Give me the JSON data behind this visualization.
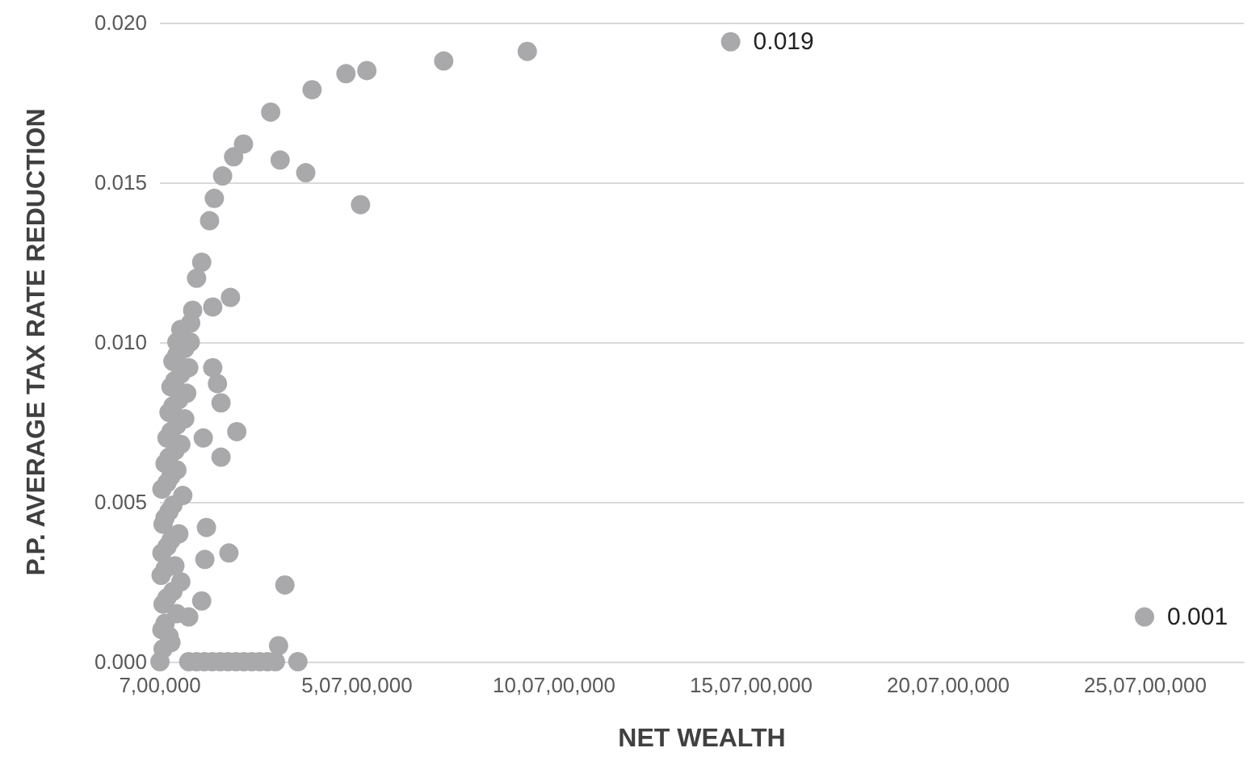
{
  "chart_data": {
    "type": "scatter",
    "xlabel": "NET WEALTH",
    "ylabel": "P.P. AVERAGE TAX RATE REDUCTION",
    "xlim": [
      700000,
      275700000
    ],
    "xticks": [
      {
        "value": 700000,
        "label": "7,00,000"
      },
      {
        "value": 50700000,
        "label": "5,07,00,000"
      },
      {
        "value": 100700000,
        "label": "10,07,00,000"
      },
      {
        "value": 150700000,
        "label": "15,07,00,000"
      },
      {
        "value": 200700000,
        "label": "20,07,00,000"
      },
      {
        "value": 250700000,
        "label": "25,07,00,000"
      }
    ],
    "ylim": [
      0,
      0.02
    ],
    "yticks": [
      {
        "value": 0,
        "label": "0.000"
      },
      {
        "value": 0.005,
        "label": "0.005"
      },
      {
        "value": 0.01,
        "label": "0.010"
      },
      {
        "value": 0.015,
        "label": "0.015"
      },
      {
        "value": 0.02,
        "label": "0.020"
      }
    ],
    "grid": "y",
    "marker": "circle",
    "color": "#a9a9ab",
    "x": [
      8400000,
      10000000,
      11300000,
      13300000,
      14500000,
      16600000,
      19400000,
      21900000,
      28800000,
      39300000,
      47900000,
      53200000,
      72700000,
      93900000,
      31200000,
      37700000,
      51600000,
      18600000,
      14100000,
      14100000,
      15300000,
      16200000,
      20200000,
      11700000,
      16200000,
      12500000,
      18200000,
      12100000,
      32400000,
      11300000,
      8000000,
      30800000,
      700000,
      8000000,
      10000000,
      12000000,
      14000000,
      16000000,
      18000000,
      20000000,
      22000000,
      24000000,
      26000000,
      28000000,
      30000000,
      35700000,
      1500000,
      3500000,
      1200000,
      2000000,
      3000000,
      5000000,
      1500000,
      2500000,
      4000000,
      6000000,
      1000000,
      2000000,
      4500000,
      1200000,
      2500000,
      3500000,
      5500000,
      1500000,
      2000000,
      3000000,
      4000000,
      6500000,
      1200000,
      2500000,
      3500000,
      5000000,
      2000000,
      3000000,
      4500000,
      6000000,
      2500000,
      3500000,
      5000000,
      7000000,
      3000000,
      4000000,
      5500000,
      7500000,
      3500000,
      4500000,
      6000000,
      8000000,
      4000000,
      5000000,
      7000000,
      5000000,
      6000000,
      8500000,
      9000000,
      145500000,
      250500000
    ],
    "values": [
      0.01,
      0.012,
      0.0125,
      0.0138,
      0.0145,
      0.0152,
      0.0158,
      0.0162,
      0.0172,
      0.0179,
      0.0184,
      0.0185,
      0.0188,
      0.0191,
      0.0157,
      0.0153,
      0.0143,
      0.0114,
      0.0111,
      0.0092,
      0.0087,
      0.0081,
      0.0072,
      0.007,
      0.0064,
      0.0042,
      0.0034,
      0.0032,
      0.0024,
      0.0019,
      0.0014,
      0.0005,
      0,
      0,
      0,
      0,
      0,
      0,
      0,
      0,
      0,
      0,
      0,
      0,
      0,
      0,
      0.0004,
      0.0006,
      0.001,
      0.0012,
      0.0008,
      0.0015,
      0.0018,
      0.002,
      0.0022,
      0.0025,
      0.0027,
      0.0029,
      0.003,
      0.0034,
      0.0036,
      0.0038,
      0.004,
      0.0043,
      0.0045,
      0.0047,
      0.0049,
      0.0052,
      0.0054,
      0.0056,
      0.0058,
      0.006,
      0.0062,
      0.0064,
      0.0066,
      0.0068,
      0.007,
      0.0072,
      0.0074,
      0.0076,
      0.0078,
      0.008,
      0.0082,
      0.0084,
      0.0086,
      0.0088,
      0.009,
      0.0092,
      0.0094,
      0.0096,
      0.0098,
      0.01,
      0.0104,
      0.0106,
      0.011,
      0.0194,
      0.0014
    ],
    "value_labels": [
      null,
      null,
      null,
      null,
      null,
      null,
      null,
      null,
      null,
      null,
      null,
      null,
      null,
      null,
      null,
      null,
      null,
      null,
      null,
      null,
      null,
      null,
      null,
      null,
      null,
      null,
      null,
      null,
      null,
      null,
      null,
      null,
      null,
      null,
      null,
      null,
      null,
      null,
      null,
      null,
      null,
      null,
      null,
      null,
      null,
      null,
      null,
      null,
      null,
      null,
      null,
      null,
      null,
      null,
      null,
      null,
      null,
      null,
      null,
      null,
      null,
      null,
      null,
      null,
      null,
      null,
      null,
      null,
      null,
      null,
      null,
      null,
      null,
      null,
      null,
      null,
      null,
      null,
      null,
      null,
      null,
      null,
      null,
      null,
      null,
      null,
      null,
      null,
      null,
      null,
      null,
      null,
      null,
      null,
      null,
      "0.019",
      "0.001"
    ]
  }
}
